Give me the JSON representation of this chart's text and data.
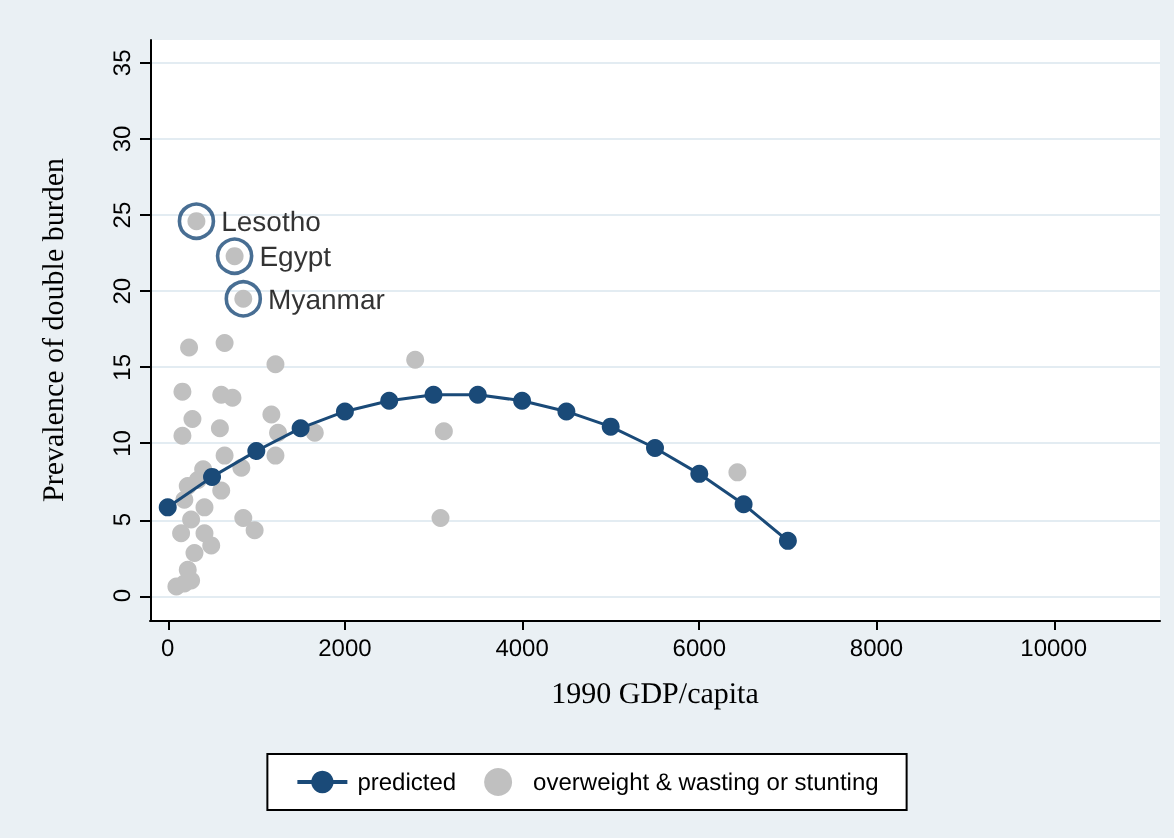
{
  "chart_data": {
    "type": "scatter",
    "xlabel": "1990 GDP/capita",
    "ylabel": "Prevalence of double burden",
    "xlim": [
      -200,
      11200
    ],
    "xticks": [
      0,
      {
        "value": 2000,
        "label": "2000"
      },
      {
        "value": 4000,
        "label": "4000"
      },
      {
        "value": 6000,
        "label": "6000"
      },
      {
        "value": 8000,
        "label": "8000"
      },
      {
        "value": 10000,
        "label": "10000"
      }
    ],
    "ylim": [
      -1.6,
      36.5
    ],
    "yticks": [
      0,
      5,
      10,
      15,
      20,
      25,
      30,
      35
    ],
    "grid": "y",
    "legend": "bottom",
    "marker": "circle",
    "series": [
      {
        "name": "predicted",
        "type": "line",
        "color": "#1a4a78",
        "x": [
          0,
          500,
          1000,
          1500,
          2000,
          2500,
          3000,
          3500,
          4000,
          4500,
          5000,
          5500,
          6000,
          6500,
          7000
        ],
        "values": [
          5.8,
          7.8,
          9.5,
          11.0,
          12.1,
          12.8,
          13.2,
          13.2,
          12.8,
          12.1,
          11.1,
          9.7,
          8.0,
          6.0,
          3.6
        ]
      },
      {
        "name": "overweight & wasting or stunting",
        "type": "scatter",
        "color": "#c0c0c0",
        "x": [
          324,
          755,
          853,
          241,
          642,
          1216,
          166,
          604,
          731,
          279,
          589,
          1170,
          166,
          1245,
          1660,
          1216,
          642,
          831,
          400,
          226,
          340,
          604,
          188,
          415,
          853,
          981,
          264,
          415,
          151,
          491,
          302,
          226,
          264,
          98,
          188,
          2793,
          3117,
          3079,
          6430
        ],
        "values": [
          24.6,
          22.3,
          19.5,
          16.3,
          16.6,
          15.2,
          13.4,
          13.2,
          13.0,
          11.6,
          11.0,
          11.9,
          10.5,
          10.7,
          10.7,
          9.2,
          9.2,
          8.4,
          8.3,
          7.2,
          7.6,
          6.9,
          6.3,
          5.8,
          5.1,
          4.3,
          5.0,
          4.1,
          4.1,
          3.3,
          2.8,
          1.7,
          1.0,
          0.6,
          0.8,
          15.5,
          10.8,
          5.1,
          8.1
        ]
      }
    ],
    "annotations": [
      {
        "text": "Lesotho",
        "x": 324,
        "y": 24.6
      },
      {
        "text": "Egypt",
        "x": 755,
        "y": 22.3
      },
      {
        "text": "Myanmar",
        "x": 853,
        "y": 19.5
      }
    ]
  }
}
